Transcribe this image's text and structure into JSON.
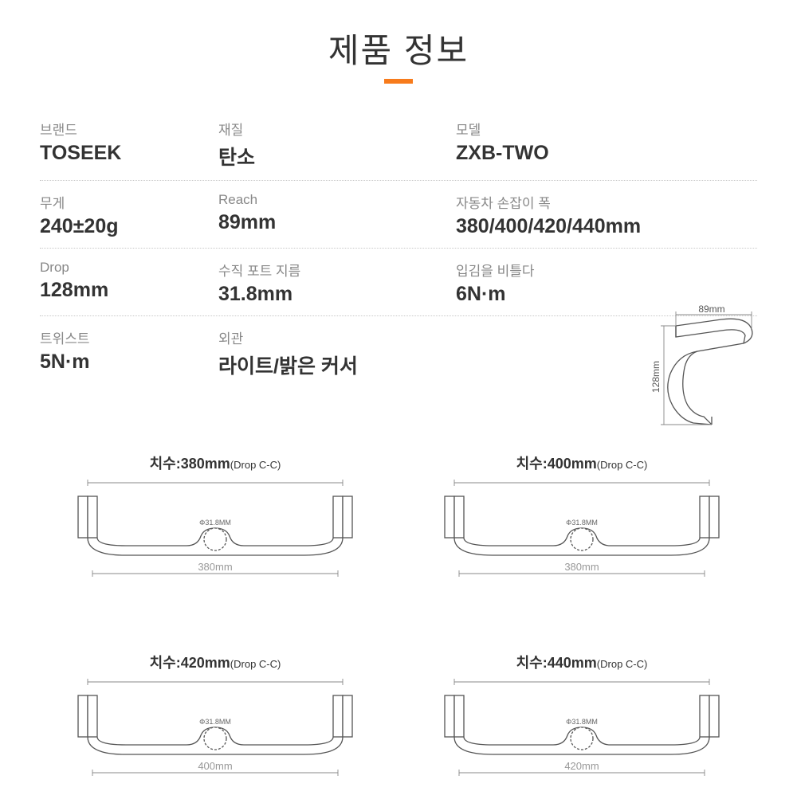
{
  "title": "제품 정보",
  "colors": {
    "accent": "#f77b1c",
    "label": "#888888",
    "value": "#333333",
    "divider": "#c8c8c8",
    "stroke": "#555555",
    "dim_text": "#888888"
  },
  "specs": {
    "row1": [
      {
        "label": "브랜드",
        "value": "TOSEEK"
      },
      {
        "label": "재질",
        "value": "탄소"
      },
      {
        "label": "모델",
        "value": "ZXB-TWO"
      }
    ],
    "row2": [
      {
        "label": "무게",
        "value": "240±20g"
      },
      {
        "label": "Reach",
        "value": "89mm"
      },
      {
        "label": "자동차 손잡이 폭",
        "value": "380/400/420/440mm"
      }
    ],
    "row3": [
      {
        "label": "Drop",
        "value": "128mm"
      },
      {
        "label": "수직 포트 지름",
        "value": "31.8mm"
      },
      {
        "label": "입김을 비틀다",
        "value": "6N·m"
      }
    ],
    "row4": [
      {
        "label": "트위스트",
        "value": "5N·m"
      },
      {
        "label": "외관",
        "value": "라이트/밝은 커서"
      }
    ]
  },
  "side_diagram": {
    "reach_label": "89mm",
    "drop_label": "128mm"
  },
  "handlebars": [
    {
      "title_prefix": "치수:",
      "size": "380mm",
      "title_suffix": "(Drop C-C)",
      "diameter": "Φ31.8MM",
      "bottom_dim": "380mm"
    },
    {
      "title_prefix": "치수:",
      "size": "400mm",
      "title_suffix": "(Drop C-C)",
      "diameter": "Φ31.8MM",
      "bottom_dim": "380mm"
    },
    {
      "title_prefix": "치수:",
      "size": "420mm",
      "title_suffix": "(Drop C-C)",
      "diameter": "Φ31.8MM",
      "bottom_dim": "400mm"
    },
    {
      "title_prefix": "치수:",
      "size": "440mm",
      "title_suffix": "(Drop C-C)",
      "diameter": "Φ31.8MM",
      "bottom_dim": "420mm"
    }
  ]
}
